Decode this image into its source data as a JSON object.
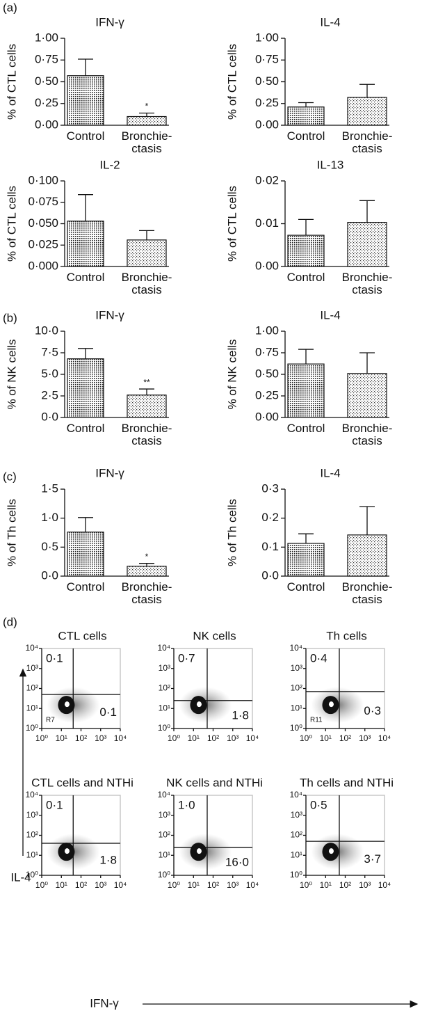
{
  "panel_labels": [
    "(a)",
    "(b)",
    "(c)",
    "(d)"
  ],
  "flow_axes": {
    "xlabel": "IFN-γ",
    "ylabel": "IL-4"
  },
  "chart_data": [
    {
      "type": "bar",
      "title": "IFN-γ",
      "ylabel": "% of CTL cells",
      "categories": [
        "Control",
        "Bronchie-\nctasis"
      ],
      "values": [
        0.57,
        0.1
      ],
      "errors": [
        0.19,
        0.04
      ],
      "annotations": [
        null,
        "*"
      ],
      "ylim": [
        0,
        1
      ],
      "yticks": [
        {
          "value": 0,
          "label": "0·00"
        },
        {
          "value": 0.25,
          "label": "0·25"
        },
        {
          "value": 0.5,
          "label": "0·50"
        },
        {
          "value": 0.75,
          "label": "0·75"
        },
        {
          "value": 1,
          "label": "1·00"
        }
      ]
    },
    {
      "type": "bar",
      "title": "IL-4",
      "ylabel": "% of CTL cells",
      "categories": [
        "Control",
        "Bronchie-\nctasis"
      ],
      "values": [
        0.21,
        0.32
      ],
      "errors": [
        0.05,
        0.15
      ],
      "ylim": [
        0,
        1
      ],
      "yticks": [
        {
          "value": 0,
          "label": "0·00"
        },
        {
          "value": 0.25,
          "label": "0·25"
        },
        {
          "value": 0.5,
          "label": "0·50"
        },
        {
          "value": 0.75,
          "label": "0·75"
        },
        {
          "value": 1,
          "label": "1·00"
        }
      ]
    },
    {
      "type": "bar",
      "title": "IL-2",
      "ylabel": "% of CTL cells",
      "categories": [
        "Control",
        "Bronchie-\nctasis"
      ],
      "values": [
        0.053,
        0.031
      ],
      "errors": [
        0.031,
        0.011
      ],
      "ylim": [
        0,
        0.1
      ],
      "yticks": [
        {
          "value": 0,
          "label": "0·000"
        },
        {
          "value": 0.025,
          "label": "0·025"
        },
        {
          "value": 0.05,
          "label": "0·050"
        },
        {
          "value": 0.075,
          "label": "0·075"
        },
        {
          "value": 0.1,
          "label": "0·100"
        }
      ]
    },
    {
      "type": "bar",
      "title": "IL-13",
      "ylabel": "% of CTL cells",
      "categories": [
        "Control",
        "Bronchie-\nctasis"
      ],
      "values": [
        0.0073,
        0.0103
      ],
      "errors": [
        0.0037,
        0.0051
      ],
      "ylim": [
        0,
        0.02
      ],
      "yticks": [
        {
          "value": 0,
          "label": "0·00"
        },
        {
          "value": 0.01,
          "label": "0·01"
        },
        {
          "value": 0.02,
          "label": "0·02"
        }
      ]
    },
    {
      "type": "bar",
      "title": "IFN-γ",
      "ylabel": "% of NK cells",
      "categories": [
        "Control",
        "Bronchie-\nctasis"
      ],
      "values": [
        6.8,
        2.6
      ],
      "errors": [
        1.2,
        0.7
      ],
      "annotations": [
        null,
        "**"
      ],
      "ylim": [
        0,
        10
      ],
      "yticks": [
        {
          "value": 0,
          "label": "0·0"
        },
        {
          "value": 2.5,
          "label": "2·5"
        },
        {
          "value": 5,
          "label": "5·0"
        },
        {
          "value": 7.5,
          "label": "7·5"
        },
        {
          "value": 10,
          "label": "10·0"
        }
      ]
    },
    {
      "type": "bar",
      "title": "IL-4",
      "ylabel": "% of NK cells",
      "categories": [
        "Control",
        "Bronchie-\nctasis"
      ],
      "values": [
        0.62,
        0.51
      ],
      "errors": [
        0.17,
        0.24
      ],
      "ylim": [
        0,
        1
      ],
      "yticks": [
        {
          "value": 0,
          "label": "0·00"
        },
        {
          "value": 0.25,
          "label": "0·25"
        },
        {
          "value": 0.5,
          "label": "0·50"
        },
        {
          "value": 0.75,
          "label": "0·75"
        },
        {
          "value": 1,
          "label": "1·00"
        }
      ]
    },
    {
      "type": "bar",
      "title": "IFN-γ",
      "ylabel": "% of Th cells",
      "categories": [
        "Control",
        "Bronchie-\nctasis"
      ],
      "values": [
        0.76,
        0.17
      ],
      "errors": [
        0.25,
        0.05
      ],
      "annotations": [
        null,
        "*"
      ],
      "ylim": [
        0,
        1.5
      ],
      "yticks": [
        {
          "value": 0,
          "label": "0·0"
        },
        {
          "value": 0.5,
          "label": "0·5"
        },
        {
          "value": 1,
          "label": "1·0"
        },
        {
          "value": 1.5,
          "label": "1·5"
        }
      ]
    },
    {
      "type": "bar",
      "title": "IL-4",
      "ylabel": "% of Th cells",
      "categories": [
        "Control",
        "Bronchie-\nctasis"
      ],
      "values": [
        0.113,
        0.142
      ],
      "errors": [
        0.033,
        0.098
      ],
      "ylim": [
        0,
        0.3
      ],
      "yticks": [
        {
          "value": 0,
          "label": "0·0"
        },
        {
          "value": 0.1,
          "label": "0·1"
        },
        {
          "value": 0.2,
          "label": "0·2"
        },
        {
          "value": 0.3,
          "label": "0·3"
        }
      ]
    },
    {
      "type": "flow",
      "title": "CTL cells",
      "log_scale": true,
      "xlim": [
        1,
        10000
      ],
      "ylim": [
        1,
        10000
      ],
      "xcut": 40,
      "ycut": 50,
      "values": [
        0.1,
        0.1
      ],
      "value_labels": [
        "0·1",
        "0·1"
      ],
      "gate_label": "R7",
      "xticks": [
        {
          "value": 1,
          "label": "10⁰"
        },
        {
          "value": 10,
          "label": "10¹"
        },
        {
          "value": 100,
          "label": "10²"
        },
        {
          "value": 1000,
          "label": "10³"
        },
        {
          "value": 10000,
          "label": "10⁴"
        }
      ],
      "yticks": [
        {
          "value": 1,
          "label": "10⁰"
        },
        {
          "value": 10,
          "label": "10¹"
        },
        {
          "value": 100,
          "label": "10²"
        },
        {
          "value": 1000,
          "label": "10³"
        },
        {
          "value": 10000,
          "label": "10⁴"
        }
      ]
    },
    {
      "type": "flow",
      "title": "NK cells",
      "log_scale": true,
      "xlim": [
        1,
        10000
      ],
      "ylim": [
        1,
        10000
      ],
      "xcut": 50,
      "ycut": 25,
      "values": [
        0.7,
        1.8
      ],
      "value_labels": [
        "0·7",
        "1·8"
      ],
      "xticks": [
        {
          "value": 1,
          "label": "10⁰"
        },
        {
          "value": 10,
          "label": "10¹"
        },
        {
          "value": 100,
          "label": "10²"
        },
        {
          "value": 1000,
          "label": "10³"
        },
        {
          "value": 10000,
          "label": "10⁴"
        }
      ],
      "yticks": [
        {
          "value": 1,
          "label": "10⁰"
        },
        {
          "value": 10,
          "label": "10¹"
        },
        {
          "value": 100,
          "label": "10²"
        },
        {
          "value": 1000,
          "label": "10³"
        },
        {
          "value": 10000,
          "label": "10⁴"
        }
      ]
    },
    {
      "type": "flow",
      "title": "Th cells",
      "log_scale": true,
      "xlim": [
        1,
        10000
      ],
      "ylim": [
        1,
        10000
      ],
      "xcut": 50,
      "ycut": 70,
      "values": [
        0.4,
        0.3
      ],
      "value_labels": [
        "0·4",
        "0·3"
      ],
      "gate_label": "R11",
      "xticks": [
        {
          "value": 1,
          "label": "10⁰"
        },
        {
          "value": 10,
          "label": "10¹"
        },
        {
          "value": 100,
          "label": "10²"
        },
        {
          "value": 1000,
          "label": "10³"
        },
        {
          "value": 10000,
          "label": "10⁴"
        }
      ],
      "yticks": [
        {
          "value": 1,
          "label": "10⁰"
        },
        {
          "value": 10,
          "label": "10¹"
        },
        {
          "value": 100,
          "label": "10²"
        },
        {
          "value": 1000,
          "label": "10³"
        },
        {
          "value": 10000,
          "label": "10⁴"
        }
      ]
    },
    {
      "type": "flow",
      "title": "CTL cells and NTHi",
      "log_scale": true,
      "xlim": [
        1,
        10000
      ],
      "ylim": [
        1,
        10000
      ],
      "xcut": 40,
      "ycut": 40,
      "values": [
        0.1,
        1.8
      ],
      "value_labels": [
        "0·1",
        "1·8"
      ],
      "xticks": [
        {
          "value": 1,
          "label": "10⁰"
        },
        {
          "value": 10,
          "label": "10¹"
        },
        {
          "value": 100,
          "label": "10²"
        },
        {
          "value": 1000,
          "label": "10³"
        },
        {
          "value": 10000,
          "label": "10⁴"
        }
      ],
      "yticks": [
        {
          "value": 1,
          "label": "10⁰"
        },
        {
          "value": 10,
          "label": "10¹"
        },
        {
          "value": 100,
          "label": "10²"
        },
        {
          "value": 1000,
          "label": "10³"
        },
        {
          "value": 10000,
          "label": "10⁴"
        }
      ]
    },
    {
      "type": "flow",
      "title": "NK cells and NTHi",
      "log_scale": true,
      "xlim": [
        1,
        10000
      ],
      "ylim": [
        1,
        10000
      ],
      "xcut": 50,
      "ycut": 25,
      "values": [
        1.0,
        16.0
      ],
      "value_labels": [
        "1·0",
        "16·0"
      ],
      "xticks": [
        {
          "value": 1,
          "label": "10⁰"
        },
        {
          "value": 10,
          "label": "10¹"
        },
        {
          "value": 100,
          "label": "10²"
        },
        {
          "value": 1000,
          "label": "10³"
        },
        {
          "value": 10000,
          "label": "10⁴"
        }
      ],
      "yticks": [
        {
          "value": 1,
          "label": "10⁰"
        },
        {
          "value": 10,
          "label": "10¹"
        },
        {
          "value": 100,
          "label": "10²"
        },
        {
          "value": 1000,
          "label": "10³"
        },
        {
          "value": 10000,
          "label": "10⁴"
        }
      ]
    },
    {
      "type": "flow",
      "title": "Th cells and NTHi",
      "log_scale": true,
      "xlim": [
        1,
        10000
      ],
      "ylim": [
        1,
        10000
      ],
      "xcut": 50,
      "ycut": 50,
      "values": [
        0.5,
        3.7
      ],
      "value_labels": [
        "0·5",
        "3·7"
      ],
      "xticks": [
        {
          "value": 1,
          "label": "10⁰"
        },
        {
          "value": 10,
          "label": "10¹"
        },
        {
          "value": 100,
          "label": "10²"
        },
        {
          "value": 1000,
          "label": "10³"
        },
        {
          "value": 10000,
          "label": "10⁴"
        }
      ],
      "yticks": [
        {
          "value": 1,
          "label": "10⁰"
        },
        {
          "value": 10,
          "label": "10¹"
        },
        {
          "value": 100,
          "label": "10²"
        },
        {
          "value": 1000,
          "label": "10³"
        },
        {
          "value": 10000,
          "label": "10⁴"
        }
      ]
    }
  ]
}
